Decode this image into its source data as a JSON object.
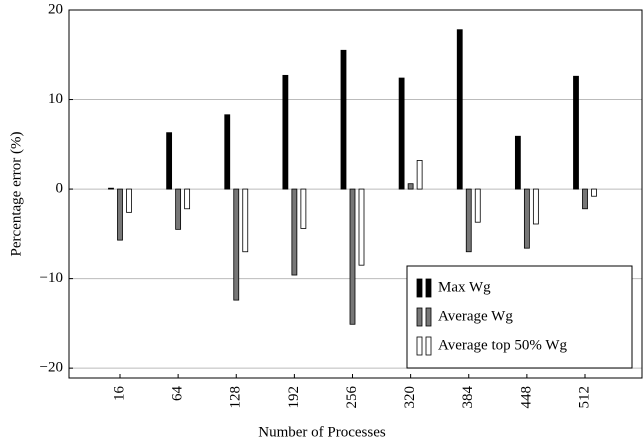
{
  "chart_data": {
    "type": "bar",
    "xlabel": "Number of Processes",
    "ylabel": "Percentage error (%)",
    "categories": [
      "16",
      "64",
      "128",
      "192",
      "256",
      "320",
      "384",
      "448",
      "512"
    ],
    "series": [
      {
        "name": "Max Wg",
        "color": "#000000",
        "values": [
          0.1,
          6.3,
          8.3,
          12.7,
          15.5,
          12.4,
          17.8,
          5.9,
          12.6
        ]
      },
      {
        "name": "Average Wg",
        "color": "#777777",
        "values": [
          -5.7,
          -4.5,
          -12.4,
          -9.6,
          -15.1,
          0.6,
          -7.0,
          -6.6,
          -2.2
        ]
      },
      {
        "name": "Average top 50% Wg",
        "color": "#ffffff",
        "values": [
          -2.6,
          -2.2,
          -7.0,
          -4.4,
          -8.5,
          3.2,
          -3.7,
          -3.9,
          -0.8
        ]
      }
    ],
    "ylim": [
      -21.1,
      20
    ],
    "yticks": [
      {
        "value": -20,
        "label": "−20"
      },
      {
        "value": -10,
        "label": "−10"
      },
      0,
      10,
      20
    ],
    "grid": true,
    "legend": "lower right"
  }
}
